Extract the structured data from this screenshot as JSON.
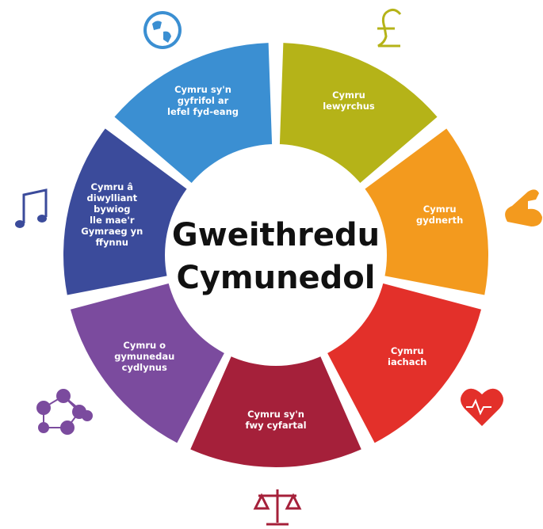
{
  "center": {
    "lines": [
      "Gweithredu",
      "Cymunedol"
    ]
  },
  "segments": [
    {
      "lines": [
        "Cymru",
        "lewyrchus"
      ],
      "color": "#b5b318"
    },
    {
      "lines": [
        "Cymru",
        "gydnerth"
      ],
      "color": "#f39a1e"
    },
    {
      "lines": [
        "Cymru",
        "iachach"
      ],
      "color": "#e3302a"
    },
    {
      "lines": [
        "Cymru sy'n",
        "fwy cyfartal"
      ],
      "color": "#a5203a"
    },
    {
      "lines": [
        "Cymru o",
        "gymunedau",
        "cydlynus"
      ],
      "color": "#7b4b9e"
    },
    {
      "lines": [
        "Cymru â",
        "diwylliant",
        "bywiog",
        "lle mae'r",
        "Gymraeg yn",
        "ffynnu"
      ],
      "color": "#3b4b9b"
    },
    {
      "lines": [
        "Cymru sy'n",
        "gyfrifol ar",
        "lefel fyd-eang"
      ],
      "color": "#3b8fd2"
    }
  ]
}
